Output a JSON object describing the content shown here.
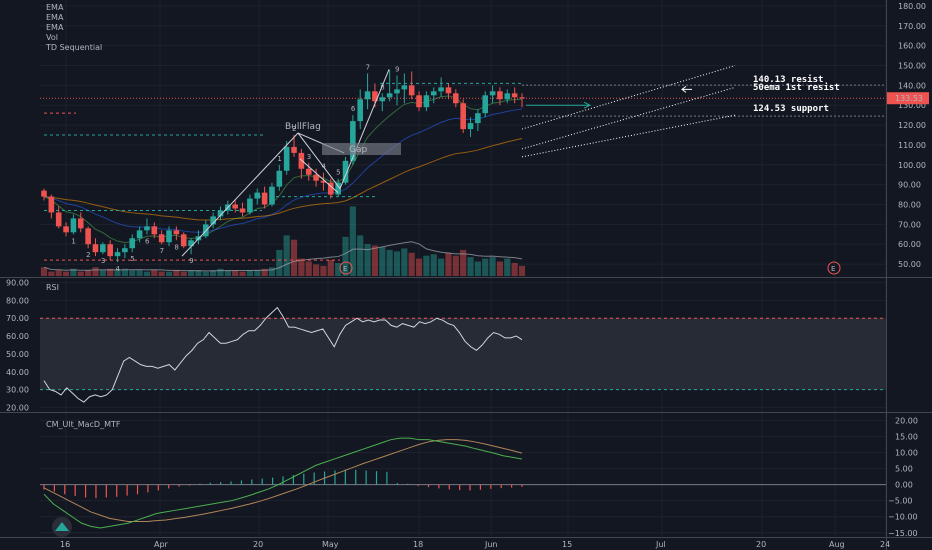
{
  "legend": {
    "items": [
      "EMA",
      "EMA",
      "EMA",
      "Vol",
      "TD Sequential"
    ]
  },
  "price_label": "133.53",
  "panes": {
    "rsi_label": "RSI",
    "macd_label": "CM_Ult_MacD_MTF"
  },
  "annotations": {
    "bullflag": "BullFlag",
    "gap": "Gap",
    "resist": "140.13 resist",
    "ema_resist": "50ema 1st resist",
    "support": "124.53 support",
    "earnings": "E"
  },
  "colors": {
    "background": "#131722",
    "up": "#26a69a",
    "down": "#ef5350",
    "grid": "#1e222d",
    "rsi_band": "#2a2e39"
  },
  "chart_data": [
    {
      "type": "candlestick",
      "name": "price",
      "x_ticks": [
        "16",
        "Apr",
        "20",
        "May",
        "18",
        "Jun",
        "15",
        "Jul",
        "20",
        "Aug",
        "24"
      ],
      "y_ticks": [
        50,
        60,
        70,
        80,
        90,
        100,
        110,
        120,
        130,
        140,
        150,
        160,
        170,
        180
      ],
      "ylim": [
        44,
        183
      ],
      "candles": [
        [
          87,
          88,
          82,
          84
        ],
        [
          84,
          85,
          73,
          76
        ],
        [
          76,
          79,
          68,
          69
        ],
        [
          69,
          71,
          64,
          66
        ],
        [
          66,
          75,
          65,
          73
        ],
        [
          73,
          76,
          66,
          68
        ],
        [
          68,
          69,
          58,
          60
        ],
        [
          60,
          63,
          54,
          56
        ],
        [
          56,
          61,
          55,
          60
        ],
        [
          60,
          62,
          52,
          54
        ],
        [
          54,
          58,
          51,
          56
        ],
        [
          56,
          60,
          53,
          58
        ],
        [
          58,
          65,
          56,
          63
        ],
        [
          63,
          69,
          61,
          67
        ],
        [
          67,
          73,
          65,
          69
        ],
        [
          69,
          71,
          63,
          65
        ],
        [
          65,
          67,
          60,
          61
        ],
        [
          61,
          69,
          59,
          67
        ],
        [
          67,
          69,
          62,
          65
        ],
        [
          65,
          66,
          58,
          59
        ],
        [
          59,
          63,
          55,
          62
        ],
        [
          62,
          67,
          60,
          64
        ],
        [
          64,
          72,
          63,
          70
        ],
        [
          70,
          76,
          68,
          74
        ],
        [
          74,
          79,
          72,
          77
        ],
        [
          77,
          82,
          75,
          80
        ],
        [
          80,
          82,
          76,
          78
        ],
        [
          78,
          81,
          74,
          76
        ],
        [
          76,
          85,
          75,
          83
        ],
        [
          83,
          88,
          80,
          86
        ],
        [
          86,
          89,
          78,
          80
        ],
        [
          80,
          91,
          79,
          89
        ],
        [
          89,
          100,
          87,
          97
        ],
        [
          97,
          112,
          95,
          109
        ],
        [
          109,
          115,
          104,
          106
        ],
        [
          106,
          108,
          93,
          98
        ],
        [
          98,
          101,
          92,
          95
        ],
        [
          95,
          98,
          89,
          92
        ],
        [
          92,
          96,
          87,
          91
        ],
        [
          91,
          93,
          83,
          85
        ],
        [
          85,
          93,
          84,
          91
        ],
        [
          91,
          104,
          90,
          102
        ],
        [
          102,
          125,
          100,
          122
        ],
        [
          122,
          138,
          118,
          133
        ],
        [
          133,
          146,
          128,
          137
        ],
        [
          137,
          141,
          129,
          132
        ],
        [
          132,
          136,
          127,
          134
        ],
        [
          134,
          148,
          132,
          136
        ],
        [
          136,
          145,
          130,
          138
        ],
        [
          138,
          146,
          131,
          140
        ],
        [
          140,
          147,
          133,
          135
        ],
        [
          135,
          137,
          127,
          129
        ],
        [
          129,
          137,
          127,
          135
        ],
        [
          135,
          139,
          131,
          137
        ],
        [
          137,
          144,
          134,
          139
        ],
        [
          139,
          141,
          133,
          136
        ],
        [
          136,
          138,
          129,
          131
        ],
        [
          131,
          133,
          116,
          118
        ],
        [
          118,
          124,
          114,
          121
        ],
        [
          121,
          128,
          117,
          126
        ],
        [
          126,
          137,
          124,
          135
        ],
        [
          135,
          140,
          131,
          137
        ],
        [
          137,
          139,
          130,
          133
        ],
        [
          133,
          138,
          131,
          136
        ],
        [
          136,
          139,
          131,
          134
        ],
        [
          134,
          136,
          129,
          133.53
        ]
      ],
      "volume": [
        6,
        3,
        4,
        3,
        5,
        3,
        4,
        6,
        4,
        5,
        4,
        5,
        4,
        4,
        3,
        4,
        3,
        3,
        4,
        3,
        4,
        4,
        3,
        4,
        5,
        4,
        4,
        3,
        4,
        4,
        5,
        6,
        18,
        28,
        25,
        12,
        10,
        8,
        7,
        11,
        9,
        27,
        48,
        28,
        22,
        21,
        20,
        18,
        17,
        19,
        16,
        12,
        14,
        15,
        12,
        16,
        14,
        18,
        13,
        10,
        12,
        13,
        10,
        12,
        9,
        7
      ],
      "resist_level": 140.13,
      "support_level": 124.53,
      "current_price": 133.53
    },
    {
      "type": "line",
      "name": "rsi",
      "y_ticks": [
        20,
        30,
        40,
        50,
        60,
        70,
        80,
        90
      ],
      "ylim": [
        18,
        92
      ],
      "band": [
        30,
        70
      ],
      "values": [
        35,
        30,
        29,
        27,
        31,
        28,
        25,
        23,
        26,
        27,
        26,
        27,
        30,
        38,
        46,
        48,
        46,
        44,
        43,
        43,
        42,
        43,
        44,
        41,
        45,
        49,
        52,
        56,
        58,
        62,
        59,
        56,
        56,
        57,
        58,
        61,
        63,
        63,
        66,
        70,
        73,
        76,
        71,
        65,
        65,
        64,
        63,
        62,
        63,
        64,
        59,
        54,
        61,
        66,
        68,
        70,
        68,
        69,
        68,
        69,
        69,
        66,
        65,
        67,
        66,
        65,
        68,
        67,
        68,
        70,
        69,
        67,
        66,
        62,
        57,
        54,
        52,
        55,
        59,
        62,
        61,
        59,
        59,
        60,
        58
      ]
    },
    {
      "type": "line",
      "name": "macd",
      "y_ticks": [
        -15,
        -10,
        -5,
        0,
        5,
        10,
        15,
        20
      ],
      "ylim": [
        -16,
        22
      ],
      "macd": [
        -3,
        -6,
        -8,
        -10,
        -12,
        -13,
        -13.5,
        -13,
        -12.5,
        -12,
        -11,
        -10,
        -9,
        -8.5,
        -8,
        -7.5,
        -7,
        -6.5,
        -6,
        -5.5,
        -5,
        -4.2,
        -3.3,
        -2.3,
        -1.3,
        0,
        1.5,
        3,
        4.5,
        6,
        7,
        8,
        9,
        10,
        11,
        12,
        13,
        14,
        14.5,
        14.5,
        14,
        14,
        13.5,
        13,
        12.5,
        12,
        11.2,
        10.5,
        9.8,
        9,
        8.5,
        8
      ],
      "signal": [
        -1,
        -2.5,
        -4,
        -5.5,
        -7,
        -8.5,
        -9.5,
        -10.5,
        -11,
        -11.5,
        -11.5,
        -11.5,
        -11.2,
        -11,
        -10.6,
        -10.2,
        -9.7,
        -9.2,
        -8.6,
        -8,
        -7.4,
        -6.7,
        -6,
        -5.2,
        -4.3,
        -3.3,
        -2.3,
        -1.3,
        -0.2,
        1,
        2.1,
        3.2,
        4.3,
        5.4,
        6.5,
        7.5,
        8.5,
        9.5,
        10.5,
        11.5,
        12.5,
        13.3,
        13.8,
        14,
        14,
        13.8,
        13.3,
        12.7,
        12,
        11.3,
        10.6,
        9.8
      ],
      "histogram": [
        -1.5,
        -2.2,
        -3,
        -3.5,
        -4,
        -4.2,
        -4,
        -3.8,
        -3.4,
        -3,
        -2.4,
        -1.8,
        -1.2,
        -0.6,
        -0.3,
        0.3,
        0.6,
        0.8,
        1,
        1.3,
        1.6,
        1.9,
        2.2,
        2.6,
        3,
        3.4,
        3.8,
        4.1,
        4.4,
        4.7,
        4.6,
        4.4,
        4.2,
        4,
        0.5,
        0.3,
        -0.4,
        -0.8,
        -1.2,
        -1.5,
        -1.7,
        -1.8,
        -1.6,
        -1.3,
        -1.1,
        -0.9,
        -0.7
      ]
    }
  ]
}
